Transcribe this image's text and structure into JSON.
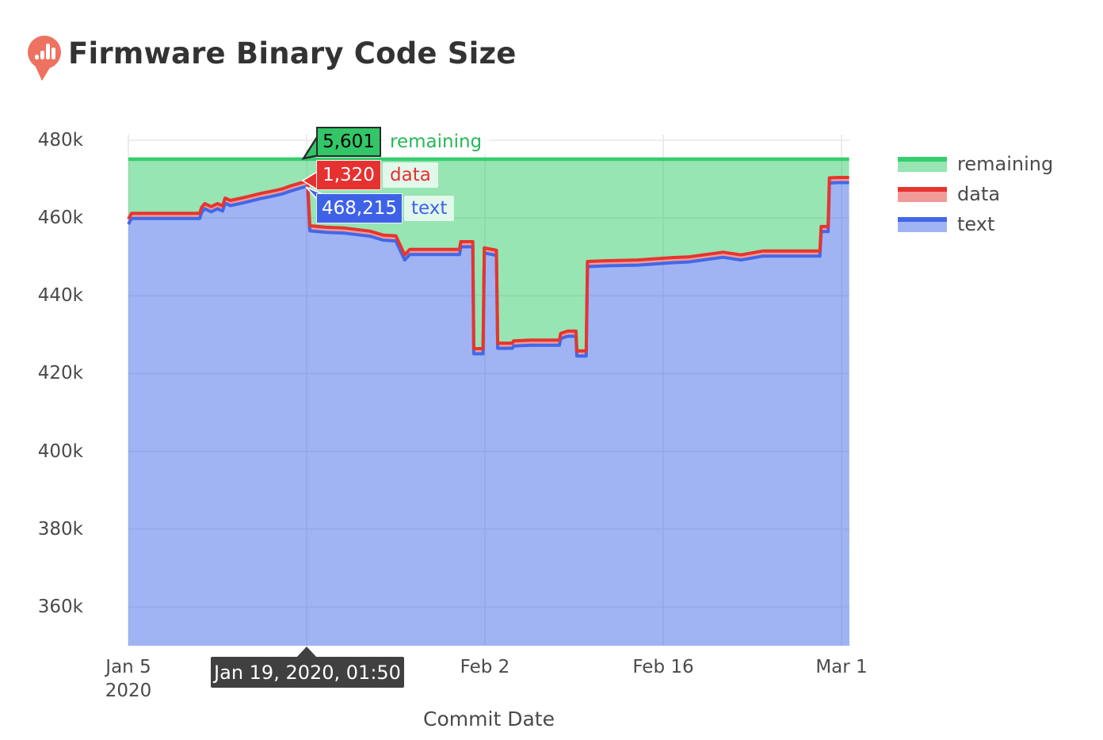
{
  "header": {
    "title": "Firmware Binary Code Size",
    "icon": "memfault-logo-icon",
    "icon_color": "#EE7261"
  },
  "chart_data": {
    "type": "area",
    "title": "Firmware Binary Code Size",
    "xlabel": "Commit Date",
    "ylabel": "",
    "x_unit_days_since": "Jan 5, 2020",
    "x_range_days": [
      0,
      56.6
    ],
    "y_range_bytes": [
      350000,
      482700
    ],
    "grid": true,
    "grid_days": [
      0,
      14,
      28,
      42,
      56
    ],
    "yticks": [
      {
        "label": "480k",
        "value": 480000
      },
      {
        "label": "460k",
        "value": 460000
      },
      {
        "label": "440k",
        "value": 440000
      },
      {
        "label": "420k",
        "value": 420000
      },
      {
        "label": "400k",
        "value": 400000
      },
      {
        "label": "380k",
        "value": 380000
      },
      {
        "label": "360k",
        "value": 360000
      }
    ],
    "xticks": [
      {
        "line1": "Jan 5",
        "line2": "2020",
        "day": 0
      },
      {
        "line1": "Feb 2",
        "line2": "",
        "day": 28
      },
      {
        "line1": "Feb 16",
        "line2": "",
        "day": 42
      },
      {
        "line1": "Mar 1",
        "line2": "",
        "day": 56
      }
    ],
    "legend_position": "right",
    "series": [
      {
        "name": "remaining",
        "line_color": "#35CE6E",
        "fill_color": "rgba(53,206,110,0.52)"
      },
      {
        "name": "data",
        "line_color": "#E6352F",
        "fill_color": "rgba(230,53,47,0.5)"
      },
      {
        "name": "text",
        "line_color": "#4168E8",
        "fill_color": "rgba(65,104,232,0.5)"
      }
    ],
    "stack_total_limit_bytes": 475136,
    "data_segment_bytes": 1320,
    "text_points_day_bytes": [
      [
        0.0,
        458400
      ],
      [
        0.25,
        459900
      ],
      [
        5.6,
        459900
      ],
      [
        5.75,
        461400
      ],
      [
        6.0,
        462400
      ],
      [
        6.5,
        461600
      ],
      [
        7.0,
        462400
      ],
      [
        7.4,
        461800
      ],
      [
        7.6,
        463800
      ],
      [
        8.0,
        463200
      ],
      [
        8.6,
        463600
      ],
      [
        9.4,
        464200
      ],
      [
        10.4,
        465000
      ],
      [
        11.3,
        465600
      ],
      [
        12.1,
        466200
      ],
      [
        12.8,
        467000
      ],
      [
        13.4,
        467600
      ],
      [
        14.076,
        468215
      ],
      [
        14.25,
        456700
      ],
      [
        15.5,
        456300
      ],
      [
        17.0,
        456100
      ],
      [
        19.0,
        455300
      ],
      [
        20.0,
        454300
      ],
      [
        21.0,
        454100
      ],
      [
        21.7,
        449200
      ],
      [
        22.1,
        450600
      ],
      [
        26.0,
        450600
      ],
      [
        26.1,
        452600
      ],
      [
        27.05,
        452600
      ],
      [
        27.12,
        425100
      ],
      [
        27.85,
        425100
      ],
      [
        27.95,
        451000
      ],
      [
        28.9,
        450400
      ],
      [
        29.0,
        426500
      ],
      [
        30.15,
        426500
      ],
      [
        30.25,
        427100
      ],
      [
        31.6,
        427300
      ],
      [
        33.85,
        427300
      ],
      [
        33.95,
        429000
      ],
      [
        34.5,
        429600
      ],
      [
        35.15,
        429600
      ],
      [
        35.22,
        424500
      ],
      [
        35.95,
        424500
      ],
      [
        36.05,
        447500
      ],
      [
        37.5,
        447700
      ],
      [
        40.0,
        447900
      ],
      [
        42.7,
        448500
      ],
      [
        44.0,
        448700
      ],
      [
        46.7,
        449900
      ],
      [
        48.1,
        449200
      ],
      [
        49.8,
        450200
      ],
      [
        54.3,
        450200
      ],
      [
        54.4,
        456500
      ],
      [
        54.95,
        456500
      ],
      [
        55.05,
        469000
      ],
      [
        55.7,
        469100
      ],
      [
        56.6,
        469100
      ]
    ],
    "hover_point": {
      "date": "Jan 19, 2020, 01:50",
      "day": 14.076,
      "text_bytes": 468215,
      "data_bytes": 1320,
      "remaining_bytes": 5601
    }
  },
  "axis": {
    "xlabel": "Commit Date"
  },
  "legend": {
    "items": [
      {
        "label": "remaining"
      },
      {
        "label": "data"
      },
      {
        "label": "text"
      }
    ]
  },
  "tooltip": {
    "remaining_value": "5,601",
    "remaining_label": "remaining",
    "data_value": "1,320",
    "data_label": "data",
    "text_value": "468,215",
    "text_label": "text",
    "date_label": "Jan 19, 2020, 01:50"
  },
  "colors": {
    "remaining_line": "#35CE6E",
    "data_line": "#E6352F",
    "text_line": "#4168E8",
    "gridline": "#E8E8E8",
    "tick_text": "#4a4a4a",
    "title_text": "#333333",
    "date_tooltip_bg": "#404040",
    "logo": "#EE7261"
  }
}
